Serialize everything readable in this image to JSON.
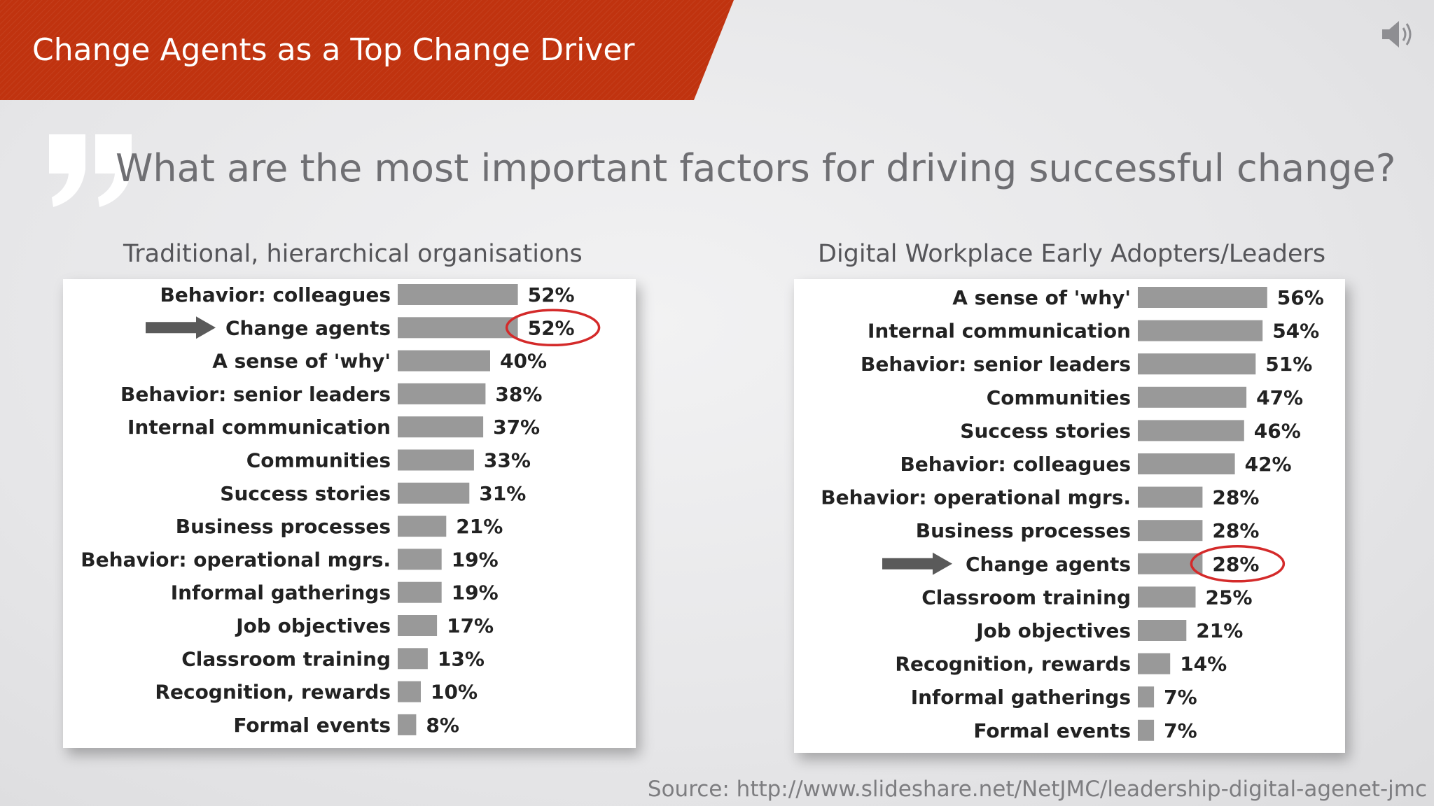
{
  "header": {
    "title": "Change Agents as a Top Change Driver",
    "banner_color": "#c0330f"
  },
  "icons": {
    "speaker": "speaker-icon",
    "quote": "quote-mark-icon"
  },
  "question": "What are the most important factors for driving successful change?",
  "source": "Source: http://www.slideshare.net/NetJMC/leadership-digital-agenet-jmc",
  "chart_data": [
    {
      "type": "bar",
      "orientation": "horizontal",
      "title": "Traditional, hierarchical organisations",
      "categories": [
        "Behavior: colleagues",
        "Change agents",
        "A sense of 'why'",
        "Behavior: senior leaders",
        "Internal communication",
        "Communities",
        "Success stories",
        "Business processes",
        "Behavior: operational mgrs.",
        "Informal gatherings",
        "Job objectives",
        "Classroom training",
        "Recognition, rewards",
        "Formal events"
      ],
      "values": [
        52,
        52,
        40,
        38,
        37,
        33,
        31,
        21,
        19,
        19,
        17,
        13,
        10,
        8
      ],
      "value_labels": [
        "52%",
        "52%",
        "40%",
        "38%",
        "37%",
        "33%",
        "31%",
        "21%",
        "19%",
        "19%",
        "17%",
        "13%",
        "10%",
        "8%"
      ],
      "unit": "%",
      "highlight": {
        "category": "Change agents",
        "annotations": [
          "arrow-icon",
          "red-ellipse"
        ]
      },
      "bar_color": "#999999",
      "highlight_color": "#d42a2a"
    },
    {
      "type": "bar",
      "orientation": "horizontal",
      "title": "Digital Workplace Early Adopters/Leaders",
      "categories": [
        "A sense of 'why'",
        "Internal communication",
        "Behavior: senior leaders",
        "Communities",
        "Success stories",
        "Behavior: colleagues",
        "Behavior: operational mgrs.",
        "Business processes",
        "Change agents",
        "Classroom training",
        "Job objectives",
        "Recognition, rewards",
        "Informal gatherings",
        "Formal events"
      ],
      "values": [
        56,
        54,
        51,
        47,
        46,
        42,
        28,
        28,
        28,
        25,
        21,
        14,
        7,
        7
      ],
      "value_labels": [
        "56%",
        "54%",
        "51%",
        "47%",
        "46%",
        "42%",
        "28%",
        "28%",
        "28%",
        "25%",
        "21%",
        "14%",
        "7%",
        "7%"
      ],
      "unit": "%",
      "highlight": {
        "category": "Change agents",
        "annotations": [
          "arrow-icon",
          "red-ellipse"
        ]
      },
      "bar_color": "#999999",
      "highlight_color": "#d42a2a"
    }
  ]
}
